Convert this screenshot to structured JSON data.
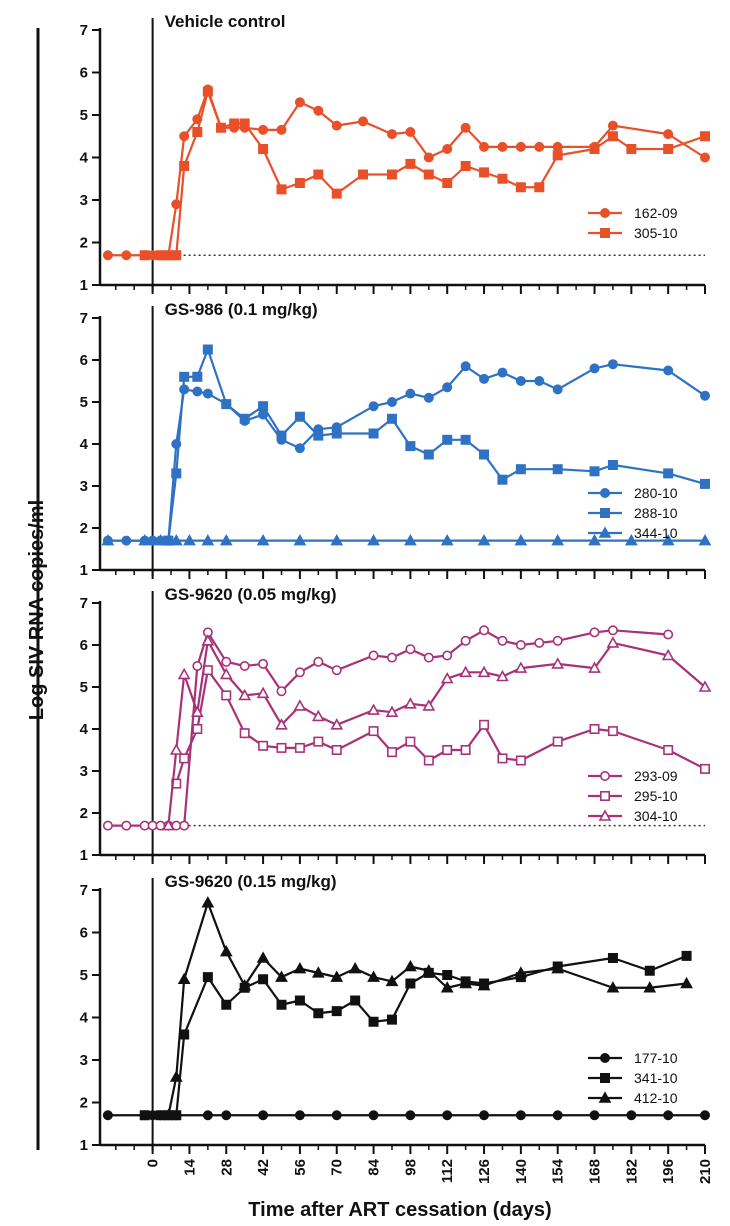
{
  "chart_data": {
    "type": "line",
    "xlabel": "Time after ART cessation (days)",
    "ylabel": "Log SIV RNA copies/ml",
    "x_ticks": [
      0,
      14,
      28,
      42,
      56,
      70,
      84,
      98,
      112,
      126,
      140,
      154,
      168,
      182,
      196,
      210
    ],
    "y_ticks": [
      1,
      2,
      3,
      4,
      5,
      6,
      7
    ],
    "xlim": [
      -20,
      210
    ],
    "ylim": [
      1,
      7
    ],
    "limit_of_detection": 1.7,
    "panels": [
      {
        "title": "Vehicle control",
        "color": "#e8502a",
        "series": [
          {
            "name": "162-09",
            "marker": "circle-filled",
            "x": [
              -17,
              -10,
              -3,
              0,
              3,
              6,
              9,
              12,
              17,
              21,
              26,
              31,
              35,
              42,
              49,
              56,
              63,
              70,
              80,
              91,
              98,
              105,
              112,
              119,
              126,
              133,
              140,
              147,
              154,
              168,
              175,
              196,
              210
            ],
            "y": [
              1.7,
              1.7,
              1.7,
              1.7,
              1.7,
              1.7,
              2.9,
              4.5,
              4.9,
              5.6,
              4.7,
              4.7,
              4.7,
              4.65,
              4.65,
              5.3,
              5.1,
              4.75,
              4.85,
              4.55,
              4.6,
              4.0,
              4.2,
              4.7,
              4.25,
              4.25,
              4.25,
              4.25,
              4.25,
              4.25,
              4.75,
              4.55,
              4.0
            ]
          },
          {
            "name": "305-10",
            "marker": "square-filled",
            "x": [
              -3,
              3,
              6,
              9,
              12,
              17,
              21,
              26,
              31,
              35,
              42,
              49,
              56,
              63,
              70,
              80,
              91,
              98,
              105,
              112,
              119,
              126,
              133,
              140,
              147,
              154,
              168,
              175,
              182,
              196,
              210
            ],
            "y": [
              1.7,
              1.7,
              1.7,
              1.7,
              3.8,
              4.6,
              5.55,
              4.7,
              4.8,
              4.8,
              4.2,
              3.25,
              3.4,
              3.6,
              3.15,
              3.6,
              3.6,
              3.85,
              3.6,
              3.4,
              3.8,
              3.65,
              3.5,
              3.3,
              3.3,
              4.05,
              4.2,
              4.5,
              4.2,
              4.2,
              4.5
            ]
          }
        ]
      },
      {
        "title": "GS-986 (0.1 mg/kg)",
        "color": "#2f72c4",
        "series": [
          {
            "name": "280-10",
            "marker": "circle-filled",
            "x": [
              -17,
              -10,
              -3,
              0,
              3,
              6,
              9,
              12,
              17,
              21,
              28,
              35,
              42,
              49,
              56,
              63,
              70,
              84,
              91,
              98,
              105,
              112,
              119,
              126,
              133,
              140,
              147,
              154,
              168,
              175,
              196,
              210
            ],
            "y": [
              1.7,
              1.7,
              1.7,
              1.7,
              1.7,
              1.7,
              4.0,
              5.3,
              5.25,
              5.2,
              4.95,
              4.55,
              4.7,
              4.1,
              3.9,
              4.35,
              4.4,
              4.9,
              5.0,
              5.2,
              5.1,
              5.35,
              5.85,
              5.55,
              5.7,
              5.5,
              5.5,
              5.3,
              5.8,
              5.9,
              5.75,
              5.15
            ]
          },
          {
            "name": "288-10",
            "marker": "square-filled",
            "x": [
              6,
              9,
              12,
              17,
              21,
              28,
              35,
              42,
              49,
              56,
              63,
              70,
              84,
              91,
              98,
              105,
              112,
              119,
              126,
              133,
              140,
              154,
              168,
              175,
              196,
              210
            ],
            "y": [
              1.7,
              3.3,
              5.6,
              5.6,
              6.25,
              4.95,
              4.6,
              4.9,
              4.2,
              4.65,
              4.2,
              4.25,
              4.25,
              4.6,
              3.95,
              3.75,
              4.1,
              4.1,
              3.75,
              3.15,
              3.4,
              3.4,
              3.35,
              3.5,
              3.3,
              3.05
            ]
          },
          {
            "name": "344-10",
            "marker": "triangle-filled",
            "x": [
              -17,
              -3,
              3,
              9,
              14,
              21,
              28,
              42,
              56,
              70,
              84,
              98,
              112,
              126,
              140,
              154,
              168,
              182,
              196,
              210
            ],
            "y": [
              1.7,
              1.7,
              1.7,
              1.7,
              1.7,
              1.7,
              1.7,
              1.7,
              1.7,
              1.7,
              1.7,
              1.7,
              1.7,
              1.7,
              1.7,
              1.7,
              1.7,
              1.7,
              1.7,
              1.7
            ]
          }
        ]
      },
      {
        "title": "GS-9620 (0.05 mg/kg)",
        "color": "#a8327a",
        "series": [
          {
            "name": "293-09",
            "marker": "circle-open",
            "x": [
              -17,
              -10,
              -3,
              0,
              3,
              6,
              9,
              12,
              17,
              21,
              28,
              35,
              42,
              49,
              56,
              63,
              70,
              84,
              91,
              98,
              105,
              112,
              119,
              126,
              133,
              140,
              147,
              154,
              168,
              175,
              196
            ],
            "y": [
              1.7,
              1.7,
              1.7,
              1.7,
              1.7,
              1.7,
              1.7,
              1.7,
              5.5,
              6.3,
              5.6,
              5.5,
              5.55,
              4.9,
              5.35,
              5.6,
              5.4,
              5.75,
              5.7,
              5.9,
              5.7,
              5.75,
              6.1,
              6.35,
              6.1,
              6.0,
              6.05,
              6.1,
              6.3,
              6.35,
              6.25
            ]
          },
          {
            "name": "295-10",
            "marker": "square-open",
            "x": [
              9,
              12,
              17,
              21,
              28,
              35,
              42,
              49,
              56,
              63,
              70,
              84,
              91,
              98,
              105,
              112,
              119,
              126,
              133,
              140,
              154,
              168,
              175,
              196,
              210
            ],
            "y": [
              2.7,
              3.3,
              4.0,
              5.4,
              4.8,
              3.9,
              3.6,
              3.55,
              3.55,
              3.7,
              3.5,
              3.95,
              3.45,
              3.7,
              3.25,
              3.5,
              3.5,
              4.1,
              3.3,
              3.25,
              3.7,
              4.0,
              3.95,
              3.5,
              3.05
            ]
          },
          {
            "name": "304-10",
            "marker": "triangle-open",
            "x": [
              6,
              9,
              12,
              17,
              21,
              28,
              35,
              42,
              49,
              56,
              63,
              70,
              84,
              91,
              98,
              105,
              112,
              119,
              126,
              133,
              140,
              154,
              168,
              175,
              196,
              210
            ],
            "y": [
              1.7,
              3.5,
              5.3,
              4.4,
              6.1,
              5.3,
              4.8,
              4.85,
              4.1,
              4.55,
              4.3,
              4.1,
              4.45,
              4.4,
              4.6,
              4.55,
              5.2,
              5.35,
              5.35,
              5.25,
              5.45,
              5.55,
              5.45,
              6.05,
              5.75,
              5.0
            ]
          }
        ]
      },
      {
        "title": "GS-9620 (0.15 mg/kg)",
        "color": "#111111",
        "series": [
          {
            "name": "177-10",
            "marker": "circle-filled",
            "x": [
              -17,
              -3,
              0,
              3,
              6,
              9,
              21,
              28,
              42,
              56,
              70,
              84,
              98,
              112,
              126,
              140,
              154,
              168,
              182,
              196,
              210
            ],
            "y": [
              1.7,
              1.7,
              1.7,
              1.7,
              1.7,
              1.7,
              1.7,
              1.7,
              1.7,
              1.7,
              1.7,
              1.7,
              1.7,
              1.7,
              1.7,
              1.7,
              1.7,
              1.7,
              1.7,
              1.7,
              1.7
            ]
          },
          {
            "name": "341-10",
            "marker": "square-filled",
            "x": [
              -3,
              3,
              6,
              9,
              12,
              21,
              28,
              35,
              42,
              49,
              56,
              63,
              70,
              77,
              84,
              91,
              98,
              105,
              112,
              119,
              126,
              140,
              154,
              175,
              189,
              203
            ],
            "y": [
              1.7,
              1.7,
              1.7,
              1.7,
              3.6,
              4.95,
              4.3,
              4.7,
              4.9,
              4.3,
              4.4,
              4.1,
              4.15,
              4.4,
              3.9,
              3.95,
              4.8,
              5.05,
              5.0,
              4.85,
              4.8,
              4.95,
              5.2,
              5.4,
              5.1,
              5.45
            ]
          },
          {
            "name": "412-10",
            "marker": "triangle-filled",
            "x": [
              6,
              9,
              12,
              21,
              28,
              35,
              42,
              49,
              56,
              63,
              70,
              77,
              84,
              91,
              98,
              105,
              112,
              119,
              126,
              140,
              154,
              175,
              189,
              203
            ],
            "y": [
              1.7,
              2.6,
              4.9,
              6.7,
              5.55,
              4.75,
              5.4,
              4.95,
              5.15,
              5.05,
              4.95,
              5.15,
              4.95,
              4.85,
              5.2,
              5.1,
              4.7,
              4.8,
              4.75,
              5.05,
              5.15,
              4.7,
              4.7,
              4.8
            ]
          }
        ]
      }
    ]
  }
}
